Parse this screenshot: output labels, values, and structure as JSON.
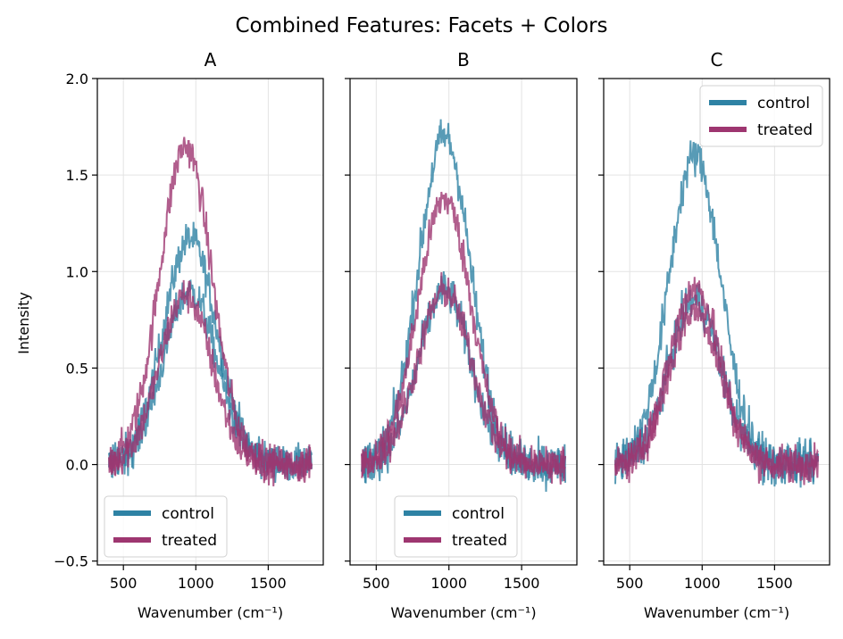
{
  "suptitle": "Combined Features: Facets + Colors",
  "y_axis_label": "Intensity",
  "x_axis_label": "Wavenumber (cm⁻¹)",
  "x_ticks": [
    "500",
    "1000",
    "1500"
  ],
  "y_ticks": [
    "−0.5",
    "0.0",
    "0.5",
    "1.0",
    "1.5",
    "2.0"
  ],
  "legend": {
    "control": "control",
    "treated": "treated"
  },
  "colors": {
    "control": "#2e82a4",
    "treated": "#9e3670"
  },
  "chart_data": [
    {
      "type": "line",
      "title": "A",
      "xlabel": "Wavenumber (cm⁻¹)",
      "ylabel": "Intensity",
      "xlim": [
        320,
        1880
      ],
      "ylim": [
        -0.52,
        2.0
      ],
      "x_range": [
        400,
        1800
      ],
      "grid": true,
      "legend_position": "lower-left",
      "series": [
        {
          "name": "control",
          "peaks": [
            1.17,
            0.9
          ],
          "center": 960,
          "width": 190,
          "noise": 0.09
        },
        {
          "name": "treated",
          "peaks": [
            1.65,
            0.88
          ],
          "center": 930,
          "width": 185,
          "noise": 0.09
        }
      ]
    },
    {
      "type": "line",
      "title": "B",
      "xlabel": "Wavenumber (cm⁻¹)",
      "ylabel": "Intensity",
      "xlim": [
        320,
        1880
      ],
      "ylim": [
        -0.52,
        2.0
      ],
      "x_range": [
        400,
        1800
      ],
      "grid": true,
      "legend_position": "lower-center",
      "series": [
        {
          "name": "control",
          "peaks": [
            1.7,
            0.9
          ],
          "center": 970,
          "width": 185,
          "noise": 0.1
        },
        {
          "name": "treated",
          "peaks": [
            1.38,
            0.9
          ],
          "center": 970,
          "width": 190,
          "noise": 0.09
        }
      ]
    },
    {
      "type": "line",
      "title": "C",
      "xlabel": "Wavenumber (cm⁻¹)",
      "ylabel": "Intensity",
      "xlim": [
        320,
        1880
      ],
      "ylim": [
        -0.52,
        2.0
      ],
      "x_range": [
        400,
        1800
      ],
      "grid": true,
      "legend_position": "upper-right",
      "series": [
        {
          "name": "control",
          "peaks": [
            1.6,
            0.85
          ],
          "center": 950,
          "width": 185,
          "noise": 0.1
        },
        {
          "name": "treated",
          "peaks": [
            0.92,
            0.8
          ],
          "center": 950,
          "width": 180,
          "noise": 0.09
        }
      ]
    }
  ]
}
